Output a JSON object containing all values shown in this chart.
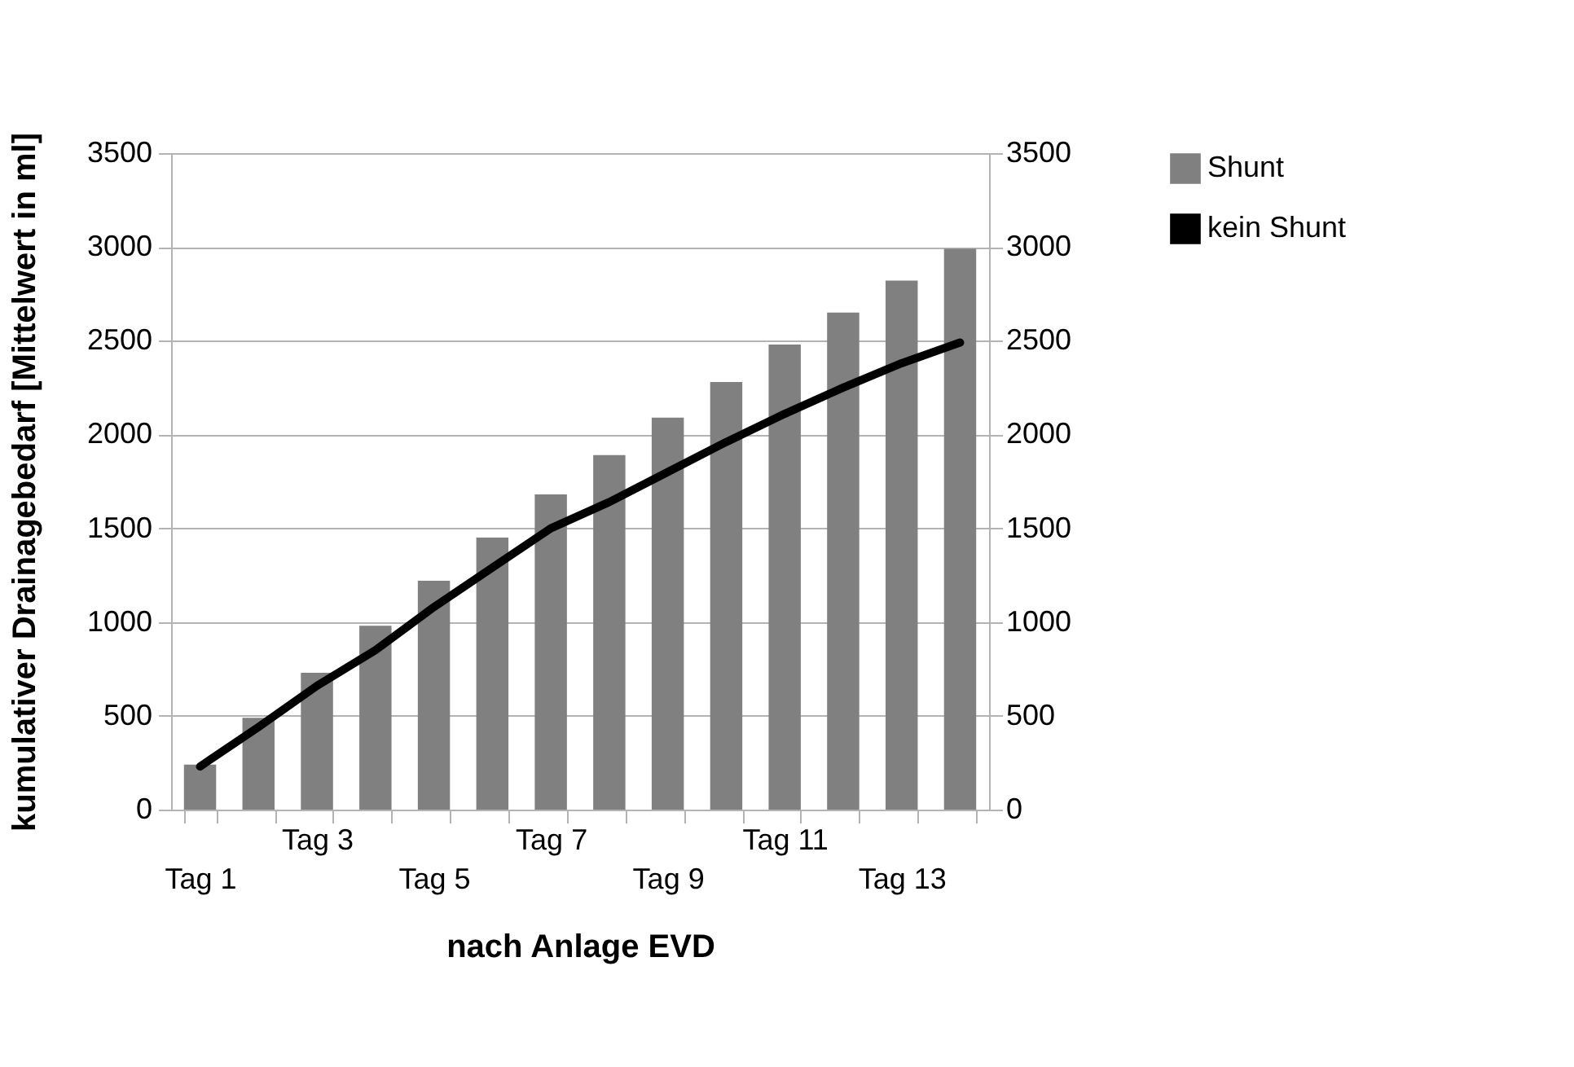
{
  "chart_data": {
    "type": "bar",
    "xlabel": "nach Anlage EVD",
    "ylabel": "kumulativer Drainagebedarf  [Mittelwert in ml]",
    "categories": [
      "Tag 1",
      null,
      "Tag 3",
      null,
      "Tag 5",
      null,
      "Tag 7",
      null,
      "Tag 9",
      null,
      "Tag 11",
      null,
      "Tag 13",
      null
    ],
    "series": [
      {
        "name": "Shunt",
        "color": "#808080",
        "values": [
          240,
          490,
          730,
          980,
          1220,
          1450,
          1680,
          1890,
          2090,
          2280,
          2480,
          2650,
          2820,
          2990
        ]
      },
      {
        "name": "kein Shunt",
        "type": "line",
        "color": "#000000",
        "values": [
          230,
          440,
          660,
          850,
          1080,
          1290,
          1500,
          1640,
          1800,
          1960,
          2110,
          2250,
          2380,
          2490
        ]
      }
    ],
    "ylim": [
      0,
      3500
    ],
    "yticks": [
      0,
      500,
      1000,
      1500,
      2000,
      2500,
      3000,
      3500
    ],
    "y2lim": [
      0,
      3500
    ],
    "y2ticks": [
      0,
      500,
      1000,
      1500,
      2000,
      2500,
      3000,
      3500
    ],
    "grid": "y",
    "legend": "right",
    "marker": "none",
    "line_style": "solid"
  }
}
